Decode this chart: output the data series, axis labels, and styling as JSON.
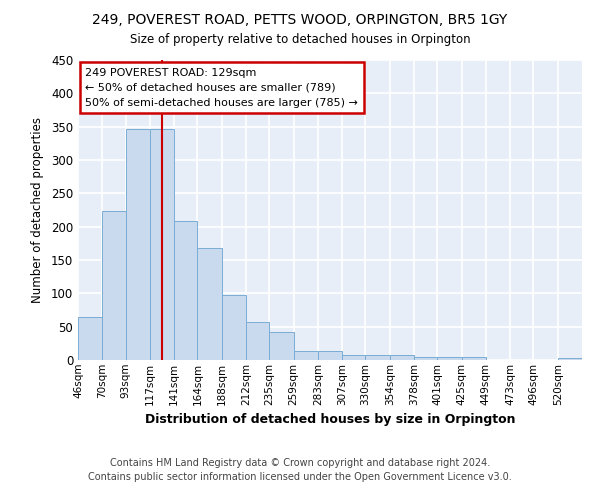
{
  "title": "249, POVEREST ROAD, PETTS WOOD, ORPINGTON, BR5 1GY",
  "subtitle": "Size of property relative to detached houses in Orpington",
  "xlabel": "Distribution of detached houses by size in Orpington",
  "ylabel": "Number of detached properties",
  "bar_labels": [
    "46sqm",
    "70sqm",
    "93sqm",
    "117sqm",
    "141sqm",
    "164sqm",
    "188sqm",
    "212sqm",
    "235sqm",
    "259sqm",
    "283sqm",
    "307sqm",
    "330sqm",
    "354sqm",
    "378sqm",
    "401sqm",
    "425sqm",
    "449sqm",
    "473sqm",
    "496sqm",
    "520sqm"
  ],
  "bin_edges": [
    46,
    70,
    93,
    117,
    141,
    164,
    188,
    212,
    235,
    259,
    283,
    307,
    330,
    354,
    378,
    401,
    425,
    449,
    473,
    496,
    520,
    544
  ],
  "bar_values": [
    65,
    223,
    346,
    346,
    208,
    168,
    97,
    57,
    42,
    14,
    14,
    7,
    7,
    7,
    5,
    5,
    5,
    0,
    0,
    0,
    3
  ],
  "bar_color": "#c9d9ee",
  "bar_edge_color": "#7aadd4",
  "bg_color": "#e8eef8",
  "grid_color": "#ffffff",
  "annotation_text": "249 POVEREST ROAD: 129sqm\n← 50% of detached houses are smaller (789)\n50% of semi-detached houses are larger (785) →",
  "annotation_box_edge": "#cc0000",
  "vline_x": 129,
  "vline_color": "#cc0000",
  "footer_line1": "Contains HM Land Registry data © Crown copyright and database right 2024.",
  "footer_line2": "Contains public sector information licensed under the Open Government Licence v3.0.",
  "ylim": [
    0,
    450
  ],
  "yticks": [
    0,
    50,
    100,
    150,
    200,
    250,
    300,
    350,
    400,
    450
  ]
}
